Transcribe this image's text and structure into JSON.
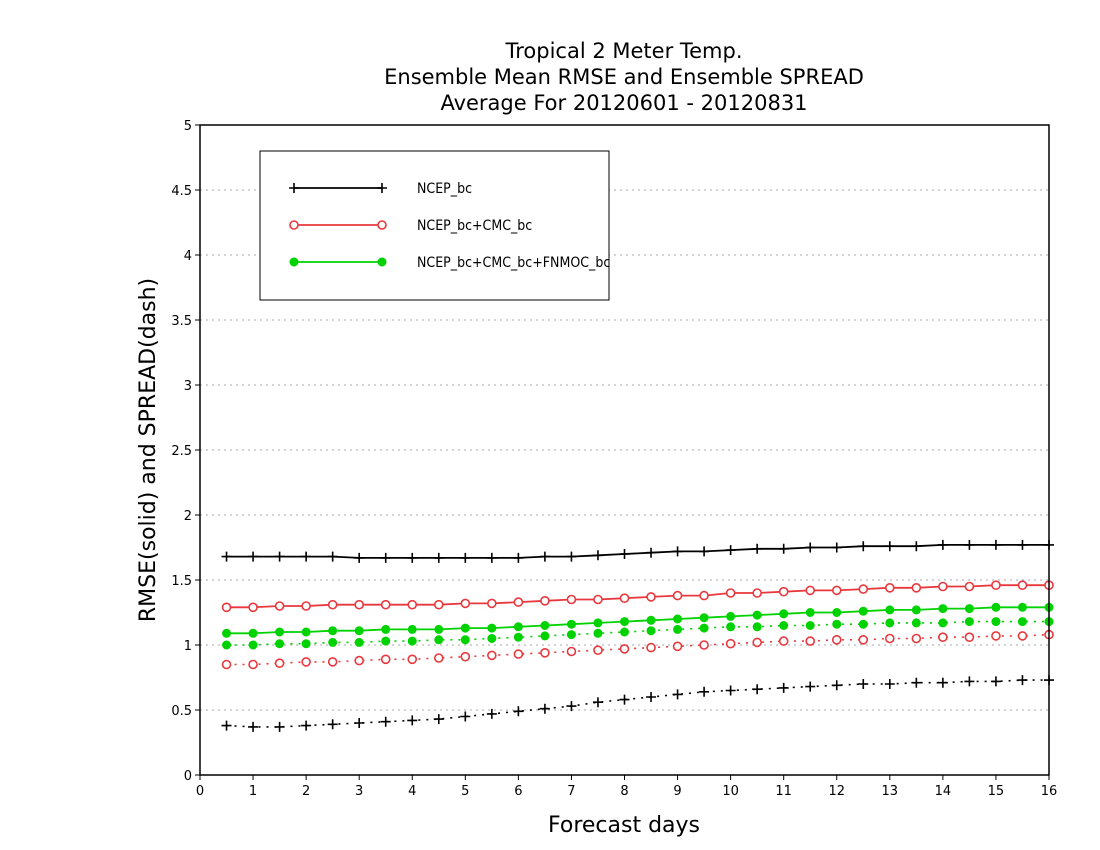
{
  "chart_data": {
    "type": "line",
    "title_lines": [
      "Tropical 2 Meter Temp.",
      "Ensemble Mean RMSE and Ensemble SPREAD",
      "Average For 20120601 - 20120831"
    ],
    "xlabel": "Forecast days",
    "ylabel": "RMSE(solid) and SPREAD(dash)",
    "xlim": [
      0,
      16
    ],
    "ylim": [
      0,
      5
    ],
    "x_ticks": [
      "0",
      "1",
      "2",
      "3",
      "4",
      "5",
      "6",
      "7",
      "8",
      "9",
      "10",
      "11",
      "12",
      "13",
      "14",
      "15",
      "16"
    ],
    "y_ticks": [
      "0",
      "0.5",
      "1",
      "1.5",
      "2",
      "2.5",
      "3",
      "3.5",
      "4",
      "4.5",
      "5"
    ],
    "grid": "horizontal dotted",
    "legend_position": "top-left",
    "x": [
      0.5,
      1,
      1.5,
      2,
      2.5,
      3,
      3.5,
      4,
      4.5,
      5,
      5.5,
      6,
      6.5,
      7,
      7.5,
      8,
      8.5,
      9,
      9.5,
      10,
      10.5,
      11,
      11.5,
      12,
      12.5,
      13,
      13.5,
      14,
      14.5,
      15,
      15.5,
      16
    ],
    "series": [
      {
        "name": "NCEP_bc",
        "color": "#000000",
        "marker": "plus",
        "rmse": [
          1.68,
          1.68,
          1.68,
          1.68,
          1.68,
          1.67,
          1.67,
          1.67,
          1.67,
          1.67,
          1.67,
          1.67,
          1.68,
          1.68,
          1.69,
          1.7,
          1.71,
          1.72,
          1.72,
          1.73,
          1.74,
          1.74,
          1.75,
          1.75,
          1.76,
          1.76,
          1.76,
          1.77,
          1.77,
          1.77,
          1.77,
          1.77
        ],
        "spread": [
          0.38,
          0.37,
          0.37,
          0.38,
          0.39,
          0.4,
          0.41,
          0.42,
          0.43,
          0.45,
          0.47,
          0.49,
          0.51,
          0.53,
          0.56,
          0.58,
          0.6,
          0.62,
          0.64,
          0.65,
          0.66,
          0.67,
          0.68,
          0.69,
          0.7,
          0.7,
          0.71,
          0.71,
          0.72,
          0.72,
          0.73,
          0.73
        ]
      },
      {
        "name": "NCEP_bc+CMC_bc",
        "color": "#e8383d",
        "marker": "open-circle",
        "rmse": [
          1.29,
          1.29,
          1.3,
          1.3,
          1.31,
          1.31,
          1.31,
          1.31,
          1.31,
          1.32,
          1.32,
          1.33,
          1.34,
          1.35,
          1.35,
          1.36,
          1.37,
          1.38,
          1.38,
          1.4,
          1.4,
          1.41,
          1.42,
          1.42,
          1.43,
          1.44,
          1.44,
          1.45,
          1.45,
          1.46,
          1.46,
          1.46
        ],
        "spread": [
          0.85,
          0.85,
          0.86,
          0.87,
          0.87,
          0.88,
          0.89,
          0.89,
          0.9,
          0.91,
          0.92,
          0.93,
          0.94,
          0.95,
          0.96,
          0.97,
          0.98,
          0.99,
          1.0,
          1.01,
          1.02,
          1.03,
          1.03,
          1.04,
          1.04,
          1.05,
          1.05,
          1.06,
          1.06,
          1.07,
          1.07,
          1.08
        ]
      },
      {
        "name": "NCEP_bc+CMC_bc+FNMOC_bc",
        "color": "#00d200",
        "marker": "filled-circle",
        "rmse": [
          1.09,
          1.09,
          1.1,
          1.1,
          1.11,
          1.11,
          1.12,
          1.12,
          1.12,
          1.13,
          1.13,
          1.14,
          1.15,
          1.16,
          1.17,
          1.18,
          1.19,
          1.2,
          1.21,
          1.22,
          1.23,
          1.24,
          1.25,
          1.25,
          1.26,
          1.27,
          1.27,
          1.28,
          1.28,
          1.29,
          1.29,
          1.29
        ],
        "spread": [
          1.0,
          1.0,
          1.01,
          1.01,
          1.02,
          1.02,
          1.03,
          1.03,
          1.04,
          1.04,
          1.05,
          1.06,
          1.07,
          1.08,
          1.09,
          1.1,
          1.11,
          1.12,
          1.13,
          1.14,
          1.14,
          1.15,
          1.15,
          1.16,
          1.16,
          1.17,
          1.17,
          1.17,
          1.18,
          1.18,
          1.18,
          1.18
        ]
      }
    ]
  }
}
